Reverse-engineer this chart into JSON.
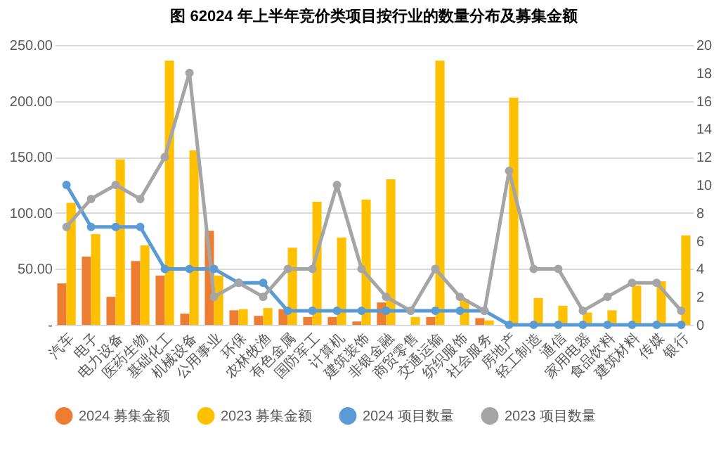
{
  "chart_data": {
    "type": "bar",
    "title": "图 62024 年上半年竞价类项目按行业的数量分布及募集金额",
    "categories": [
      "汽车",
      "电子",
      "电力设备",
      "医药生物",
      "基础化工",
      "机械设备",
      "公用事业",
      "环保",
      "农林牧渔",
      "有色金属",
      "国防军工",
      "计算机",
      "建筑装饰",
      "非银金融",
      "商贸零售",
      "交通运输",
      "纺织服饰",
      "社会服务",
      "房地产",
      "轻工制造",
      "通信",
      "家用电器",
      "食品饮料",
      "建筑材料",
      "传媒",
      "银行"
    ],
    "series": [
      {
        "name": "2024 募集金额",
        "type": "bar",
        "color": "#ed7d31",
        "values": [
          37,
          61,
          25,
          57,
          44,
          10,
          84,
          13,
          8,
          14,
          7,
          7,
          3,
          20,
          null,
          7,
          null,
          6,
          null,
          null,
          null,
          null,
          null,
          null,
          null,
          null
        ]
      },
      {
        "name": "2023 募集金额",
        "type": "bar",
        "color": "#ffc000",
        "values": [
          109,
          81,
          148,
          71,
          236,
          156,
          44,
          14,
          15,
          69,
          110,
          78,
          112,
          130,
          7,
          236,
          23,
          4,
          203,
          24,
          17,
          11,
          13,
          35,
          39,
          80
        ]
      },
      {
        "name": "2024 项目数量",
        "type": "line",
        "axis": "y2",
        "color": "#5b9bd5",
        "values": [
          10,
          7,
          7,
          7,
          4,
          4,
          4,
          3,
          3,
          1,
          1,
          1,
          1,
          1,
          1,
          1,
          1,
          1,
          0,
          0,
          0,
          0,
          0,
          0,
          0,
          0
        ]
      },
      {
        "name": "2023 项目数量",
        "type": "line",
        "axis": "y2",
        "color": "#a5a5a5",
        "values": [
          7,
          9,
          10,
          9,
          12,
          18,
          2,
          3,
          2,
          4,
          4,
          10,
          4,
          2,
          1,
          4,
          2,
          1,
          11,
          4,
          4,
          1,
          2,
          3,
          3,
          1
        ]
      }
    ],
    "ylim": [
      0,
      250
    ],
    "yticks": [
      {
        "value": 0,
        "label": "-"
      },
      {
        "value": 50,
        "label": "50.00"
      },
      {
        "value": 100,
        "label": "100.00"
      },
      {
        "value": 150,
        "label": "150.00"
      },
      {
        "value": 200,
        "label": "200.00"
      },
      {
        "value": 250,
        "label": "250.00"
      }
    ],
    "y2lim": [
      0,
      20
    ],
    "y2ticks": [
      0,
      2,
      4,
      6,
      8,
      10,
      12,
      14,
      16,
      18,
      20
    ],
    "grid": "y",
    "legend": "bottom",
    "marker": "circle",
    "line_style": "solid"
  }
}
